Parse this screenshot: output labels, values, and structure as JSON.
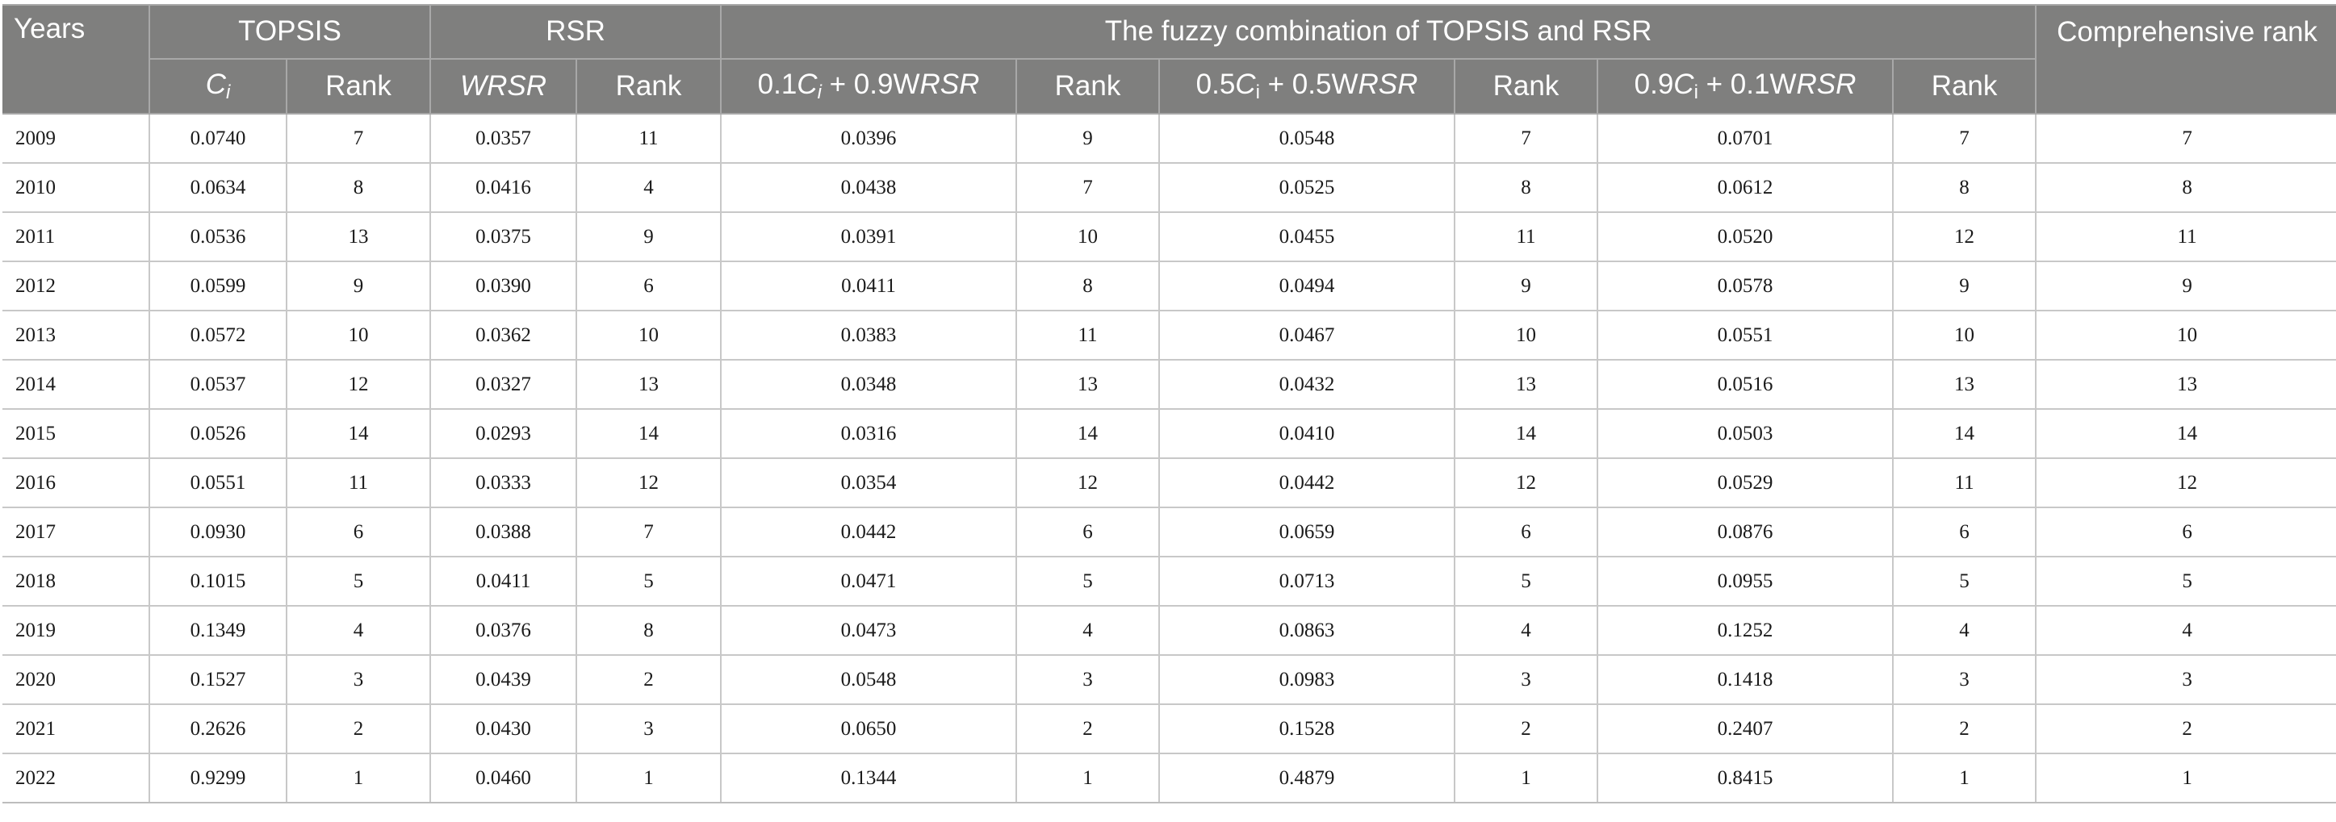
{
  "header": {
    "years": "Years",
    "topsis": "TOPSIS",
    "rsr": "RSR",
    "fuzzy": "The fuzzy combination of TOPSIS and RSR",
    "comprehensive": "Comprehensive rank",
    "ci": "C",
    "ci_sub": "i",
    "rank": "Rank",
    "wrsr": "WRSR",
    "combo1_a": "0.1",
    "combo1_ci": "C",
    "combo1_sub": "i",
    "combo1_b": " + 0.9W",
    "combo1_c": "RSR",
    "combo2_a": "0.5",
    "combo2_ci": "C",
    "combo2_sub": "i",
    "combo2_b": " + 0.5W",
    "combo2_c": "RSR",
    "combo3_a": "0.9",
    "combo3_ci": "C",
    "combo3_sub": "i",
    "combo3_b": " + 0.1W",
    "combo3_c": "RSR"
  },
  "rows": [
    {
      "year": "2009",
      "ci": "0.0740",
      "ci_rank": "7",
      "wrsr": "0.0357",
      "wrsr_rank": "11",
      "c1": "0.0396",
      "c1_rank": "9",
      "c5": "0.0548",
      "c5_rank": "7",
      "c9": "0.0701",
      "c9_rank": "7",
      "comp": "7"
    },
    {
      "year": "2010",
      "ci": "0.0634",
      "ci_rank": "8",
      "wrsr": "0.0416",
      "wrsr_rank": "4",
      "c1": "0.0438",
      "c1_rank": "7",
      "c5": "0.0525",
      "c5_rank": "8",
      "c9": "0.0612",
      "c9_rank": "8",
      "comp": "8"
    },
    {
      "year": "2011",
      "ci": "0.0536",
      "ci_rank": "13",
      "wrsr": "0.0375",
      "wrsr_rank": "9",
      "c1": "0.0391",
      "c1_rank": "10",
      "c5": "0.0455",
      "c5_rank": "11",
      "c9": "0.0520",
      "c9_rank": "12",
      "comp": "11"
    },
    {
      "year": "2012",
      "ci": "0.0599",
      "ci_rank": "9",
      "wrsr": "0.0390",
      "wrsr_rank": "6",
      "c1": "0.0411",
      "c1_rank": "8",
      "c5": "0.0494",
      "c5_rank": "9",
      "c9": "0.0578",
      "c9_rank": "9",
      "comp": "9"
    },
    {
      "year": "2013",
      "ci": "0.0572",
      "ci_rank": "10",
      "wrsr": "0.0362",
      "wrsr_rank": "10",
      "c1": "0.0383",
      "c1_rank": "11",
      "c5": "0.0467",
      "c5_rank": "10",
      "c9": "0.0551",
      "c9_rank": "10",
      "comp": "10"
    },
    {
      "year": "2014",
      "ci": "0.0537",
      "ci_rank": "12",
      "wrsr": "0.0327",
      "wrsr_rank": "13",
      "c1": "0.0348",
      "c1_rank": "13",
      "c5": "0.0432",
      "c5_rank": "13",
      "c9": "0.0516",
      "c9_rank": "13",
      "comp": "13"
    },
    {
      "year": "2015",
      "ci": "0.0526",
      "ci_rank": "14",
      "wrsr": "0.0293",
      "wrsr_rank": "14",
      "c1": "0.0316",
      "c1_rank": "14",
      "c5": "0.0410",
      "c5_rank": "14",
      "c9": "0.0503",
      "c9_rank": "14",
      "comp": "14"
    },
    {
      "year": "2016",
      "ci": "0.0551",
      "ci_rank": "11",
      "wrsr": "0.0333",
      "wrsr_rank": "12",
      "c1": "0.0354",
      "c1_rank": "12",
      "c5": "0.0442",
      "c5_rank": "12",
      "c9": "0.0529",
      "c9_rank": "11",
      "comp": "12"
    },
    {
      "year": "2017",
      "ci": "0.0930",
      "ci_rank": "6",
      "wrsr": "0.0388",
      "wrsr_rank": "7",
      "c1": "0.0442",
      "c1_rank": "6",
      "c5": "0.0659",
      "c5_rank": "6",
      "c9": "0.0876",
      "c9_rank": "6",
      "comp": "6"
    },
    {
      "year": "2018",
      "ci": "0.1015",
      "ci_rank": "5",
      "wrsr": "0.0411",
      "wrsr_rank": "5",
      "c1": "0.0471",
      "c1_rank": "5",
      "c5": "0.0713",
      "c5_rank": "5",
      "c9": "0.0955",
      "c9_rank": "5",
      "comp": "5"
    },
    {
      "year": "2019",
      "ci": "0.1349",
      "ci_rank": "4",
      "wrsr": "0.0376",
      "wrsr_rank": "8",
      "c1": "0.0473",
      "c1_rank": "4",
      "c5": "0.0863",
      "c5_rank": "4",
      "c9": "0.1252",
      "c9_rank": "4",
      "comp": "4"
    },
    {
      "year": "2020",
      "ci": "0.1527",
      "ci_rank": "3",
      "wrsr": "0.0439",
      "wrsr_rank": "2",
      "c1": "0.0548",
      "c1_rank": "3",
      "c5": "0.0983",
      "c5_rank": "3",
      "c9": "0.1418",
      "c9_rank": "3",
      "comp": "3"
    },
    {
      "year": "2021",
      "ci": "0.2626",
      "ci_rank": "2",
      "wrsr": "0.0430",
      "wrsr_rank": "3",
      "c1": "0.0650",
      "c1_rank": "2",
      "c5": "0.1528",
      "c5_rank": "2",
      "c9": "0.2407",
      "c9_rank": "2",
      "comp": "2"
    },
    {
      "year": "2022",
      "ci": "0.9299",
      "ci_rank": "1",
      "wrsr": "0.0460",
      "wrsr_rank": "1",
      "c1": "0.1344",
      "c1_rank": "1",
      "c5": "0.4879",
      "c5_rank": "1",
      "c9": "0.8415",
      "c9_rank": "1",
      "comp": "1"
    }
  ]
}
